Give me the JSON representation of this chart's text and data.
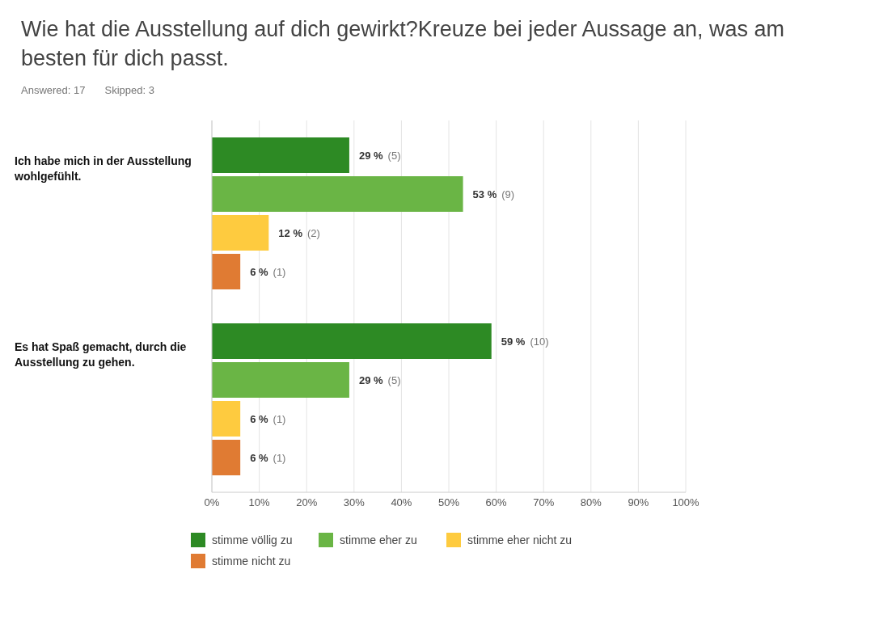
{
  "chart_data": {
    "type": "bar",
    "orientation": "horizontal",
    "title": "Wie hat die Ausstellung auf dich gewirkt?Kreuze bei jeder Aussage an, was am besten für dich passt.",
    "annotations": [
      "Answered: 17",
      "Skipped: 3"
    ],
    "categories": [
      "Ich habe mich in der Ausstellung wohlgefühlt.",
      "Es hat Spaß gemacht, durch die Ausstellung zu gehen."
    ],
    "series": [
      {
        "name": "stimme völlig zu",
        "color": "#2d8a24",
        "values": [
          29,
          59
        ],
        "value_labels": [
          "29 % (5)",
          "59 % (10)"
        ]
      },
      {
        "name": "stimme eher zu",
        "color": "#6ab545",
        "values": [
          53,
          29
        ],
        "value_labels": [
          "53 % (9)",
          "29 % (5)"
        ]
      },
      {
        "name": "stimme eher nicht zu",
        "color": "#fecb3f",
        "values": [
          12,
          6
        ],
        "value_labels": [
          "12 % (2)",
          "6 % (1)"
        ]
      },
      {
        "name": "stimme nicht zu",
        "color": "#e07b33",
        "values": [
          6,
          6
        ],
        "value_labels": [
          "6 % (1)",
          "6 % (1)"
        ]
      }
    ],
    "xlim": [
      0,
      100
    ],
    "xticks": [
      {
        "value": 0,
        "label": "0%"
      },
      {
        "value": 10,
        "label": "10%"
      },
      {
        "value": 20,
        "label": "20%"
      },
      {
        "value": 30,
        "label": "30%"
      },
      {
        "value": 40,
        "label": "40%"
      },
      {
        "value": 50,
        "label": "50%"
      },
      {
        "value": 60,
        "label": "60%"
      },
      {
        "value": 70,
        "label": "70%"
      },
      {
        "value": 80,
        "label": "80%"
      },
      {
        "value": 90,
        "label": "90%"
      },
      {
        "value": 100,
        "label": "100%"
      }
    ],
    "grid": "x",
    "legend": "bottom"
  }
}
